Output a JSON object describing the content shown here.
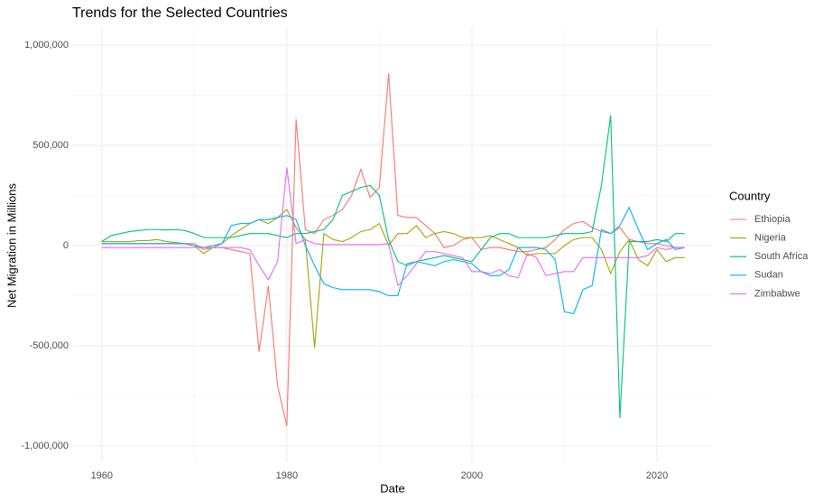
{
  "chart_data": {
    "type": "line",
    "title": "Trends for the Selected Countries",
    "x_label": "Date",
    "y_label": "Net Migration in Millions",
    "legend_title": "Country",
    "legend_position": "right",
    "grid": true,
    "x": [
      1960,
      1961,
      1962,
      1963,
      1964,
      1965,
      1966,
      1967,
      1968,
      1969,
      1970,
      1971,
      1972,
      1973,
      1974,
      1975,
      1976,
      1977,
      1978,
      1979,
      1980,
      1981,
      1982,
      1983,
      1984,
      1985,
      1986,
      1987,
      1988,
      1989,
      1990,
      1991,
      1992,
      1993,
      1994,
      1995,
      1996,
      1997,
      1998,
      1999,
      2000,
      2001,
      2002,
      2003,
      2004,
      2005,
      2006,
      2007,
      2008,
      2009,
      2010,
      2011,
      2012,
      2013,
      2014,
      2015,
      2016,
      2017,
      2018,
      2019,
      2020,
      2021,
      2022,
      2023
    ],
    "xlim": [
      1956.8,
      2026.05
    ],
    "xticks": [
      1960,
      1980,
      2000,
      2020
    ],
    "ylim": [
      -1081000,
      1090000
    ],
    "yticks": [
      {
        "value": -1000000,
        "label": "-1,000,000"
      },
      {
        "value": -500000,
        "label": "-500,000"
      },
      0,
      {
        "value": 500000,
        "label": "500,000"
      },
      {
        "value": 1000000,
        "label": "1,000,000"
      }
    ],
    "series": [
      {
        "name": "Ethiopia",
        "color": "#F8766D",
        "values": [
          10000,
          10000,
          10000,
          10000,
          10000,
          10000,
          10000,
          10000,
          10000,
          10000,
          10000,
          -20000,
          -10000,
          -10000,
          -20000,
          -30000,
          -40000,
          -530000,
          -200000,
          -700000,
          -900000,
          630000,
          80000,
          60000,
          130000,
          150000,
          180000,
          250000,
          380000,
          240000,
          290000,
          860000,
          150000,
          140000,
          140000,
          100000,
          60000,
          -10000,
          0,
          30000,
          40000,
          -20000,
          -10000,
          -10000,
          -20000,
          -30000,
          -30000,
          -20000,
          -10000,
          30000,
          80000,
          110000,
          120000,
          90000,
          70000,
          60000,
          90000,
          30000,
          20000,
          10000,
          10000,
          0,
          -10000,
          -10000
        ]
      },
      {
        "name": "Nigeria",
        "color": "#A3A500",
        "values": [
          20000,
          20000,
          20000,
          20000,
          25000,
          25000,
          30000,
          20000,
          15000,
          10000,
          0,
          -40000,
          -10000,
          10000,
          50000,
          80000,
          110000,
          130000,
          110000,
          140000,
          180000,
          90000,
          30000,
          -510000,
          60000,
          30000,
          20000,
          40000,
          70000,
          80000,
          110000,
          0,
          60000,
          60000,
          100000,
          40000,
          60000,
          70000,
          60000,
          40000,
          40000,
          40000,
          50000,
          30000,
          10000,
          -10000,
          -50000,
          -40000,
          -40000,
          -40000,
          0,
          30000,
          40000,
          40000,
          -20000,
          -140000,
          -30000,
          30000,
          -70000,
          -100000,
          -20000,
          -80000,
          -60000,
          -60000
        ]
      },
      {
        "name": "South Africa",
        "color": "#00BF7D",
        "values": [
          20000,
          50000,
          60000,
          70000,
          75000,
          80000,
          80000,
          78000,
          80000,
          75000,
          60000,
          40000,
          40000,
          40000,
          40000,
          50000,
          60000,
          60000,
          60000,
          50000,
          40000,
          60000,
          60000,
          70000,
          80000,
          130000,
          250000,
          270000,
          290000,
          300000,
          250000,
          30000,
          -80000,
          -100000,
          -80000,
          -70000,
          -60000,
          -50000,
          -60000,
          -70000,
          -80000,
          -20000,
          40000,
          60000,
          60000,
          40000,
          40000,
          40000,
          40000,
          50000,
          60000,
          60000,
          60000,
          70000,
          300000,
          650000,
          -860000,
          20000,
          20000,
          20000,
          30000,
          20000,
          60000,
          60000
        ]
      },
      {
        "name": "Sudan",
        "color": "#00B0F6",
        "values": [
          10000,
          10000,
          10000,
          10000,
          10000,
          10000,
          10000,
          10000,
          10000,
          10000,
          0,
          -10000,
          0,
          10000,
          100000,
          110000,
          110000,
          130000,
          130000,
          140000,
          150000,
          130000,
          0,
          -100000,
          -190000,
          -210000,
          -220000,
          -220000,
          -220000,
          -220000,
          -230000,
          -250000,
          -250000,
          -90000,
          -80000,
          -90000,
          -100000,
          -80000,
          -70000,
          -80000,
          -90000,
          -130000,
          -150000,
          -150000,
          -120000,
          -10000,
          -10000,
          -10000,
          -20000,
          -70000,
          -330000,
          -340000,
          -220000,
          -200000,
          80000,
          60000,
          100000,
          190000,
          80000,
          -20000,
          10000,
          30000,
          -20000,
          -10000
        ]
      },
      {
        "name": "Zimbabwe",
        "color": "#E76BF3",
        "values": [
          -10000,
          -10000,
          -10000,
          -10000,
          -10000,
          -10000,
          -10000,
          -10000,
          -10000,
          -10000,
          -10000,
          -10000,
          -10000,
          -10000,
          -10000,
          -10000,
          -20000,
          -100000,
          -170000,
          -80000,
          390000,
          10000,
          30000,
          10000,
          5000,
          5000,
          5000,
          5000,
          5000,
          5000,
          5000,
          10000,
          -200000,
          -150000,
          -90000,
          -30000,
          -30000,
          -40000,
          -50000,
          -60000,
          -130000,
          -130000,
          -140000,
          -120000,
          -150000,
          -160000,
          -40000,
          -60000,
          -150000,
          -140000,
          -130000,
          -130000,
          -60000,
          -60000,
          -60000,
          -60000,
          -60000,
          -60000,
          -60000,
          -50000,
          -10000,
          -20000,
          -10000,
          -10000
        ]
      }
    ]
  }
}
